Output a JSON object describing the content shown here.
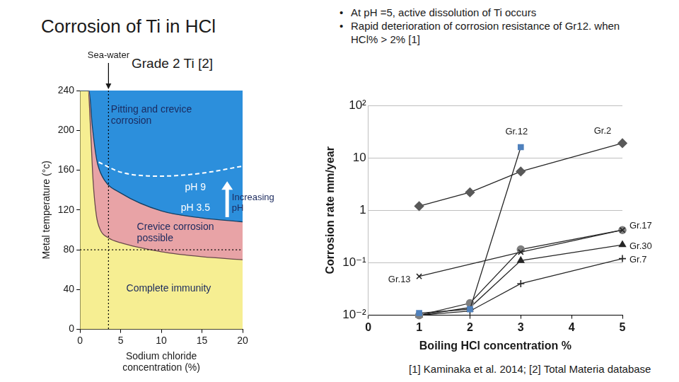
{
  "slide": {
    "title": "Corrosion of Ti in HCl",
    "bullets": [
      "At pH =5, active dissolution of Ti occurs",
      "Rapid deterioration of corrosion resistance of Gr12. when HCl% > 2% [1]"
    ],
    "references": "[1] Kaminaka et al. 2014; [2] Total Materia database"
  },
  "chart_data": [
    {
      "type": "area",
      "title": "Grade 2 Ti [2]",
      "x_label": "Sodium chloride concentration (%)",
      "y_label": "Metal temperature (°c)",
      "xlim": [
        0,
        20
      ],
      "xticks": [
        0,
        5,
        10,
        15,
        20
      ],
      "ylim": [
        0,
        240
      ],
      "yticks": [
        0,
        40,
        80,
        120,
        160,
        200,
        240
      ],
      "grid": false,
      "series": [
        {
          "name": "Pitting and crevice corrosion",
          "type": "area",
          "color": "#2c8fdc",
          "x": [
            0,
            1.1,
            1.5,
            1.9,
            2.2,
            3,
            5,
            10,
            15,
            20
          ],
          "values": [
            240,
            240,
            205,
            178,
            165,
            150,
            137,
            119,
            112,
            108
          ]
        },
        {
          "name": "Crevice corrosion possible",
          "type": "area",
          "color": "#e8a3a6",
          "x": [
            0,
            1.0,
            1.3,
            1.6,
            2.0,
            2.5,
            3.5,
            5,
            10,
            15,
            20
          ],
          "values": [
            240,
            240,
            200,
            150,
            115,
            100,
            92,
            87,
            78,
            73,
            70
          ]
        },
        {
          "name": "Complete immunity",
          "type": "area",
          "color": "#f6ee92",
          "x": [
            0,
            20
          ],
          "values": [
            0,
            0
          ]
        },
        {
          "name": "pH 9",
          "type": "line",
          "color": "#ffffff",
          "line_style": "dashed",
          "x": [
            2.3,
            5,
            10,
            15,
            20
          ],
          "values": [
            168,
            158,
            154,
            157,
            164
          ]
        }
      ],
      "annotations": [
        "pH 3.5",
        "Increasing pH"
      ],
      "vline": {
        "x": 3.5,
        "label": "Sea-water"
      },
      "hline": {
        "y": 80
      }
    },
    {
      "type": "line",
      "x_label": "Boiling HCl concentration %",
      "y_label": "Corrosion rate mm/year",
      "xlim": [
        0,
        5
      ],
      "xticks": [
        0,
        1,
        2,
        3,
        4,
        5
      ],
      "log": "y",
      "ylim": [
        0.01,
        100
      ],
      "yticks": [
        {
          "value": 0.01,
          "label": "10⁻²"
        },
        {
          "value": 0.1,
          "label": "10⁻¹"
        },
        1,
        10,
        {
          "value": 100,
          "label": "10²"
        }
      ],
      "grid": true,
      "series": [
        {
          "name": "Gr.2",
          "color": "#595959",
          "marker": "diamond",
          "x": [
            1,
            2,
            3,
            5
          ],
          "values": [
            1.2,
            2.2,
            5.5,
            19
          ]
        },
        {
          "name": "Gr.12",
          "color": "#4f81bd",
          "marker": "square",
          "x": [
            1,
            2,
            3
          ],
          "values": [
            0.011,
            0.013,
            16
          ]
        },
        {
          "name": "Gr.13",
          "color": "#262626",
          "marker": "x",
          "x": [
            1,
            3,
            5
          ],
          "values": [
            0.055,
            0.16,
            0.42
          ]
        },
        {
          "name": "Gr.17",
          "color": "#7f7f7f",
          "marker": "circle",
          "x": [
            1,
            2,
            3,
            5
          ],
          "values": [
            0.01,
            0.017,
            0.18,
            0.42
          ]
        },
        {
          "name": "Gr.30",
          "color": "#262626",
          "marker": "triangle",
          "x": [
            1,
            2,
            3,
            5
          ],
          "values": [
            0.01,
            0.014,
            0.11,
            0.22
          ]
        },
        {
          "name": "Gr.7",
          "color": "#262626",
          "marker": "plus",
          "x": [
            1,
            2,
            3,
            5
          ],
          "values": [
            0.01,
            0.012,
            0.04,
            0.12
          ]
        }
      ]
    }
  ]
}
